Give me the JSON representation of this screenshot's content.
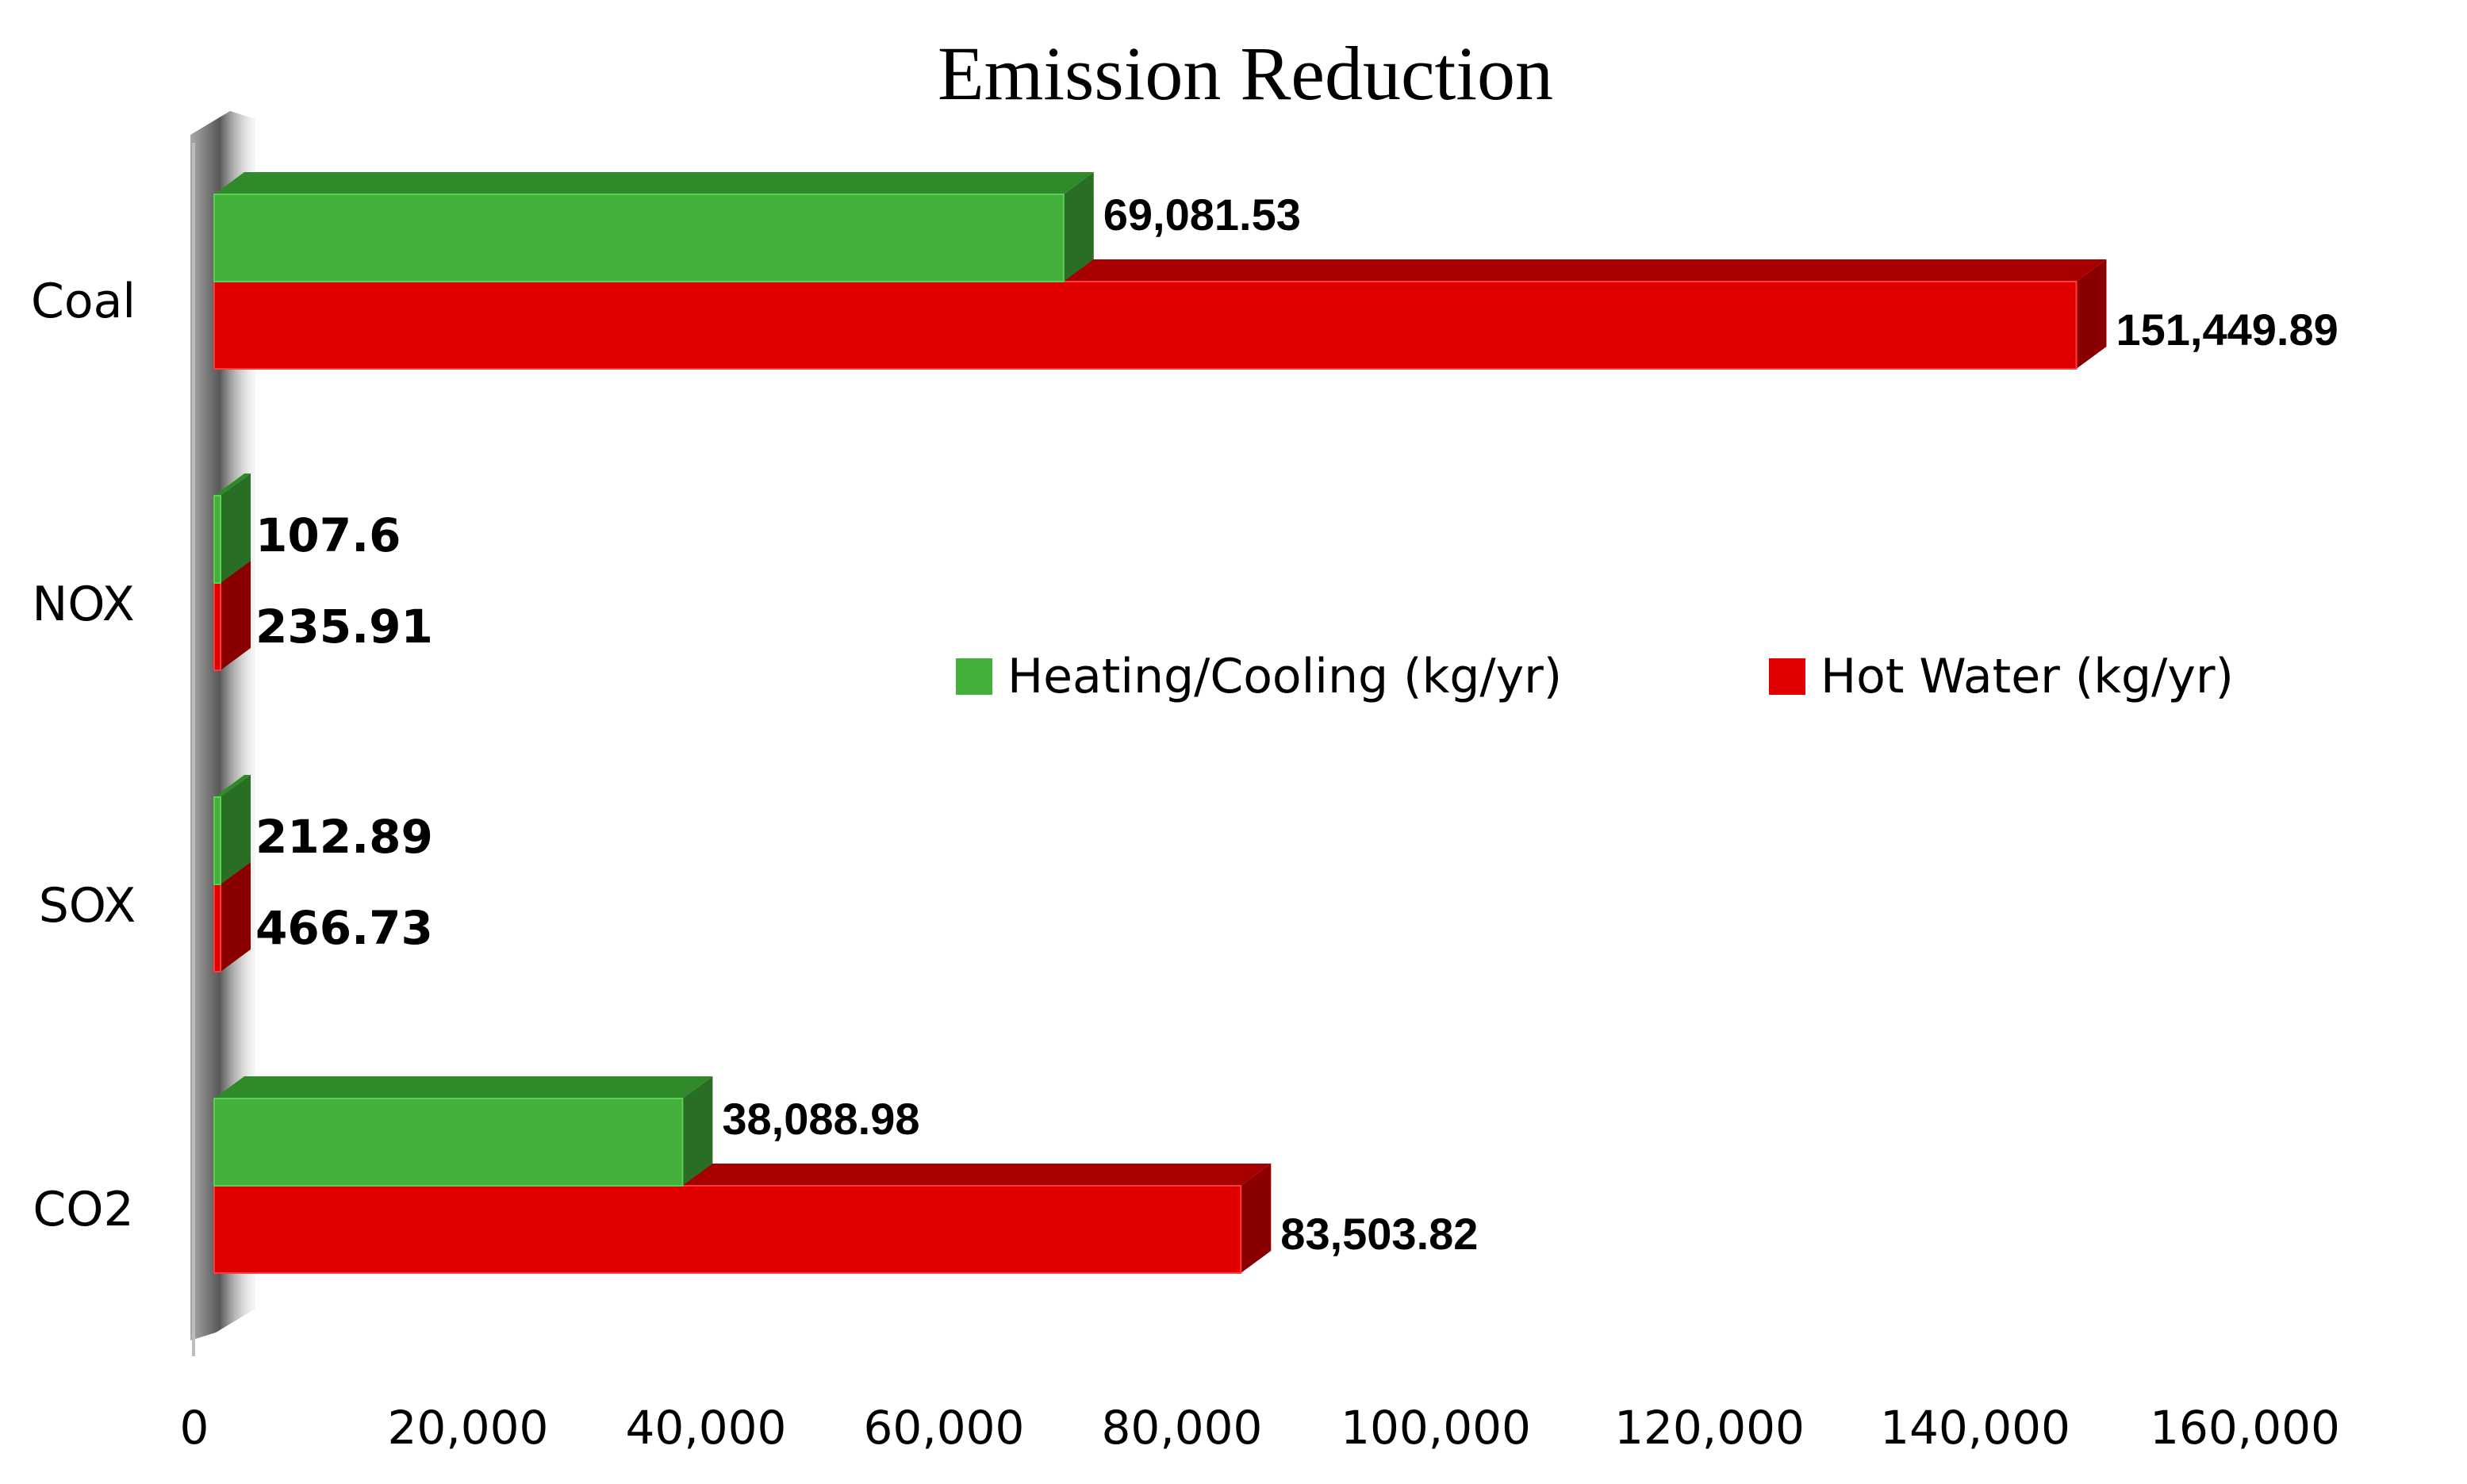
{
  "chart_data": {
    "type": "bar",
    "orientation": "horizontal",
    "title": "Emission Reduction",
    "categories": [
      "Coal",
      "NOX",
      "SOX",
      "CO2"
    ],
    "series": [
      {
        "name": "Heating/Cooling (kg/yr)",
        "color": "#43b03c",
        "values": [
          69081.53,
          107.6,
          212.89,
          38088.98
        ],
        "labels": [
          "69,081.53",
          "107.6",
          "212.89",
          "38,088.98"
        ]
      },
      {
        "name": "Hot Water (kg/yr)",
        "color": "#e00000",
        "values": [
          151449.89,
          235.91,
          466.73,
          83503.82
        ],
        "labels": [
          "151,449.89",
          "235.91",
          "466.73",
          "83,503.82"
        ]
      }
    ],
    "xlim": [
      0,
      160000
    ],
    "xticks": [
      "0",
      "20,000",
      "40,000",
      "60,000",
      "80,000",
      "100,000",
      "120,000",
      "140,000",
      "160,000"
    ],
    "xlabel": "",
    "ylabel": "",
    "legend_position": "center-right",
    "grid": false,
    "style": "3d"
  }
}
